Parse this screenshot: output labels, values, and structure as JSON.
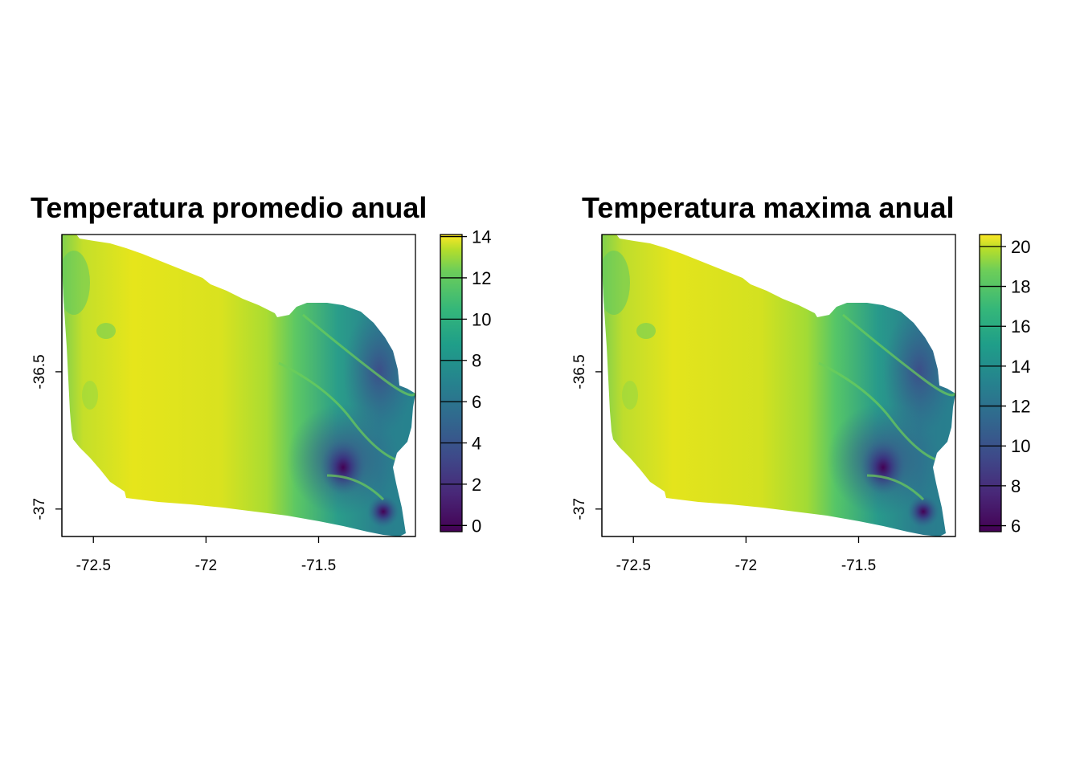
{
  "panels": [
    {
      "title": "Temperatura promedio anual",
      "x_ticks": [
        {
          "value": -72.5,
          "label": "-72.5"
        },
        {
          "value": -72,
          "label": "-72"
        },
        {
          "value": -71.5,
          "label": "-71.5"
        }
      ],
      "y_ticks": [
        {
          "value": -36.5,
          "label": "-36.5"
        },
        {
          "value": -37,
          "label": "-37"
        }
      ],
      "legend": {
        "range": [
          -0.3,
          14.1
        ],
        "ticks": [
          {
            "value": 0,
            "label": "0"
          },
          {
            "value": 2,
            "label": "2"
          },
          {
            "value": 4,
            "label": "4"
          },
          {
            "value": 6,
            "label": "6"
          },
          {
            "value": 8,
            "label": "8"
          },
          {
            "value": 10,
            "label": "10"
          },
          {
            "value": 12,
            "label": "12"
          },
          {
            "value": 14,
            "label": "14"
          }
        ]
      }
    },
    {
      "title": "Temperatura maxima anual",
      "x_ticks": [
        {
          "value": -72.5,
          "label": "-72.5"
        },
        {
          "value": -72,
          "label": "-72"
        },
        {
          "value": -71.5,
          "label": "-71.5"
        }
      ],
      "y_ticks": [
        {
          "value": -36.5,
          "label": "-36.5"
        },
        {
          "value": -37,
          "label": "-37"
        }
      ],
      "legend": {
        "range": [
          5.7,
          20.6
        ],
        "ticks": [
          {
            "value": 6,
            "label": "6"
          },
          {
            "value": 8,
            "label": "8"
          },
          {
            "value": 10,
            "label": "10"
          },
          {
            "value": 12,
            "label": "12"
          },
          {
            "value": 14,
            "label": "14"
          },
          {
            "value": 16,
            "label": "16"
          },
          {
            "value": 18,
            "label": "18"
          },
          {
            "value": 20,
            "label": "20"
          }
        ]
      }
    }
  ],
  "map_extent": {
    "lon": [
      -72.64,
      -71.07
    ],
    "lat": [
      -37.1,
      -36.0
    ]
  },
  "colormap": "viridis",
  "colors": {
    "viridis_0": "#440154",
    "viridis_1": "#3b528b",
    "viridis_2": "#21908c",
    "viridis_3": "#5dc863",
    "viridis_4": "#fde725"
  }
}
